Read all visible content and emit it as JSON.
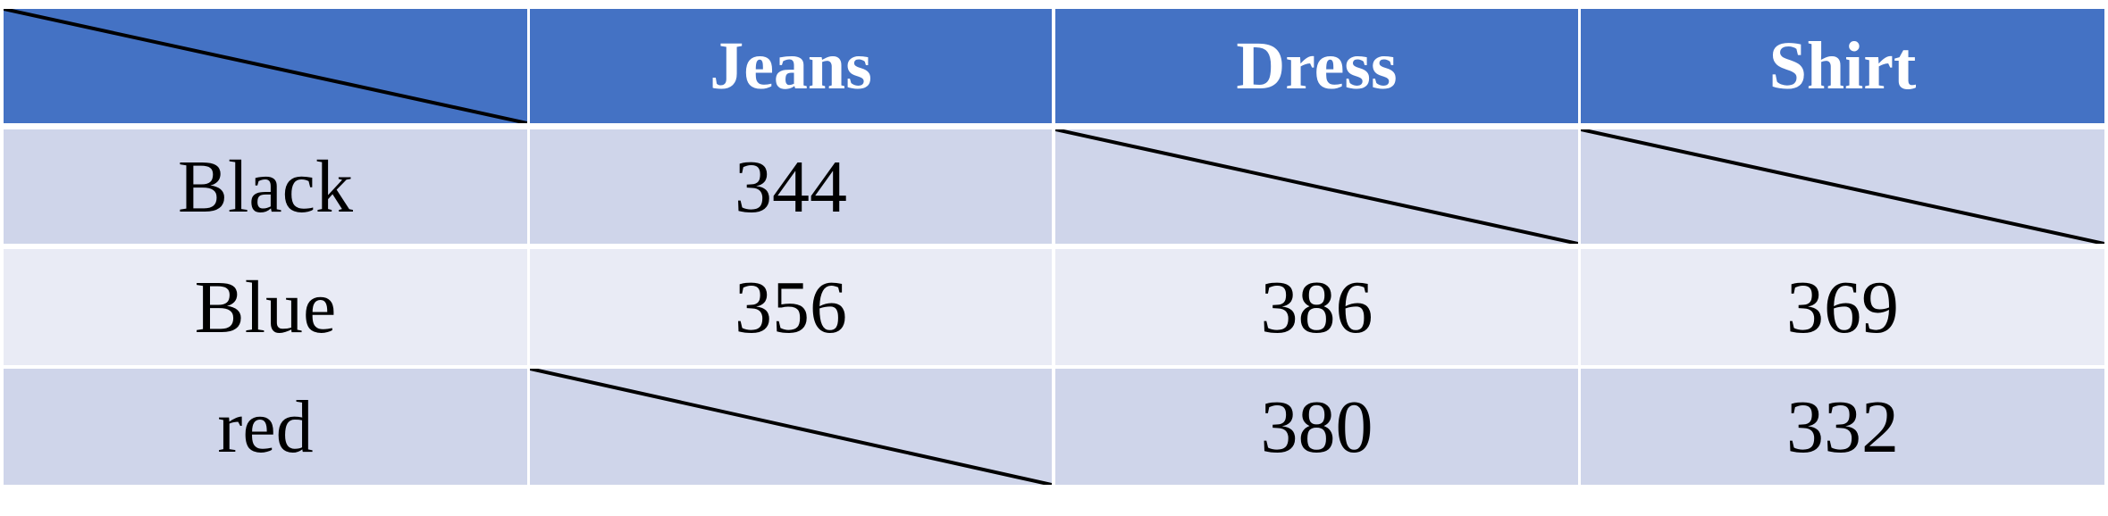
{
  "table": {
    "colors": {
      "header_bg": "#4472c4",
      "header_text": "#ffffff",
      "row_dark": "#cfd5ea",
      "row_light": "#e9ebf5",
      "grid_line": "#ffffff"
    },
    "corner": "",
    "columns": [
      "Jeans",
      "Dress",
      "Shirt"
    ],
    "rows": [
      {
        "label": "Black",
        "values": [
          "344",
          "",
          ""
        ]
      },
      {
        "label": "Blue",
        "values": [
          "356",
          "386",
          "369"
        ]
      },
      {
        "label": "red",
        "values": [
          "",
          "380",
          "332"
        ]
      }
    ],
    "empty_cells_marked_with_diagonal": true
  }
}
